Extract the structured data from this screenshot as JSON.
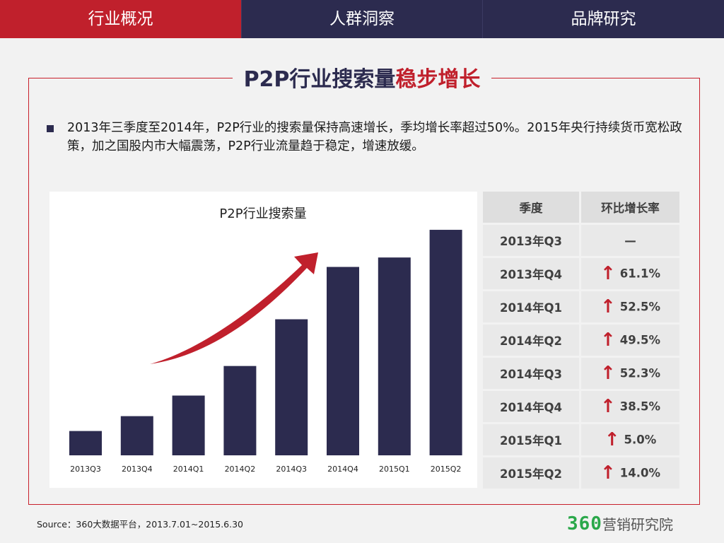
{
  "nav": {
    "tabs": [
      "行业概况",
      "人群洞察",
      "品牌研究"
    ]
  },
  "title": {
    "main": "P2P行业搜索量",
    "highlight": "稳步增长"
  },
  "description": "2013年三季度至2014年，P2P行业的搜索量保持高速增长，季均增长率超过50%。2015年央行持续货币宽松政策，加之国股内市大幅震荡，P2P行业流量趋于稳定，增速放缓。",
  "chart_data": {
    "type": "bar",
    "title": "P2P行业搜索量",
    "categories": [
      "2013Q3",
      "2013Q4",
      "2014Q1",
      "2014Q2",
      "2014Q3",
      "2014Q4",
      "2015Q1",
      "2015Q2"
    ],
    "values": [
      100,
      161.1,
      245.7,
      367.3,
      559.4,
      774.6,
      813.4,
      927.2
    ],
    "ylim": [
      0,
      1000
    ],
    "grid": false,
    "legend": "none",
    "bar_color": "#2c2b4f",
    "arrow_color": "#c0202c"
  },
  "table": {
    "headers": [
      "季度",
      "环比增长率"
    ],
    "rows": [
      {
        "quarter": "2013年Q3",
        "rate": "—",
        "arrow": ""
      },
      {
        "quarter": "2013年Q4",
        "rate": "61.1%",
        "arrow": "↑"
      },
      {
        "quarter": "2014年Q1",
        "rate": "52.5%",
        "arrow": "↑"
      },
      {
        "quarter": "2014年Q2",
        "rate": "49.5%",
        "arrow": "↑"
      },
      {
        "quarter": "2014年Q3",
        "rate": "52.3%",
        "arrow": "↑"
      },
      {
        "quarter": "2014年Q4",
        "rate": "38.5%",
        "arrow": "↑"
      },
      {
        "quarter": "2015年Q1",
        "rate": "5.0%",
        "arrow": "↑"
      },
      {
        "quarter": "2015年Q2",
        "rate": "14.0%",
        "arrow": "↑"
      }
    ]
  },
  "footer": {
    "source": "Source：360大数据平台，2013.7.01~2015.6.30",
    "logo_num": "360",
    "logo_text": "营销研究院"
  },
  "colors": {
    "accent": "#c0202c",
    "navy": "#2c2b4f"
  }
}
